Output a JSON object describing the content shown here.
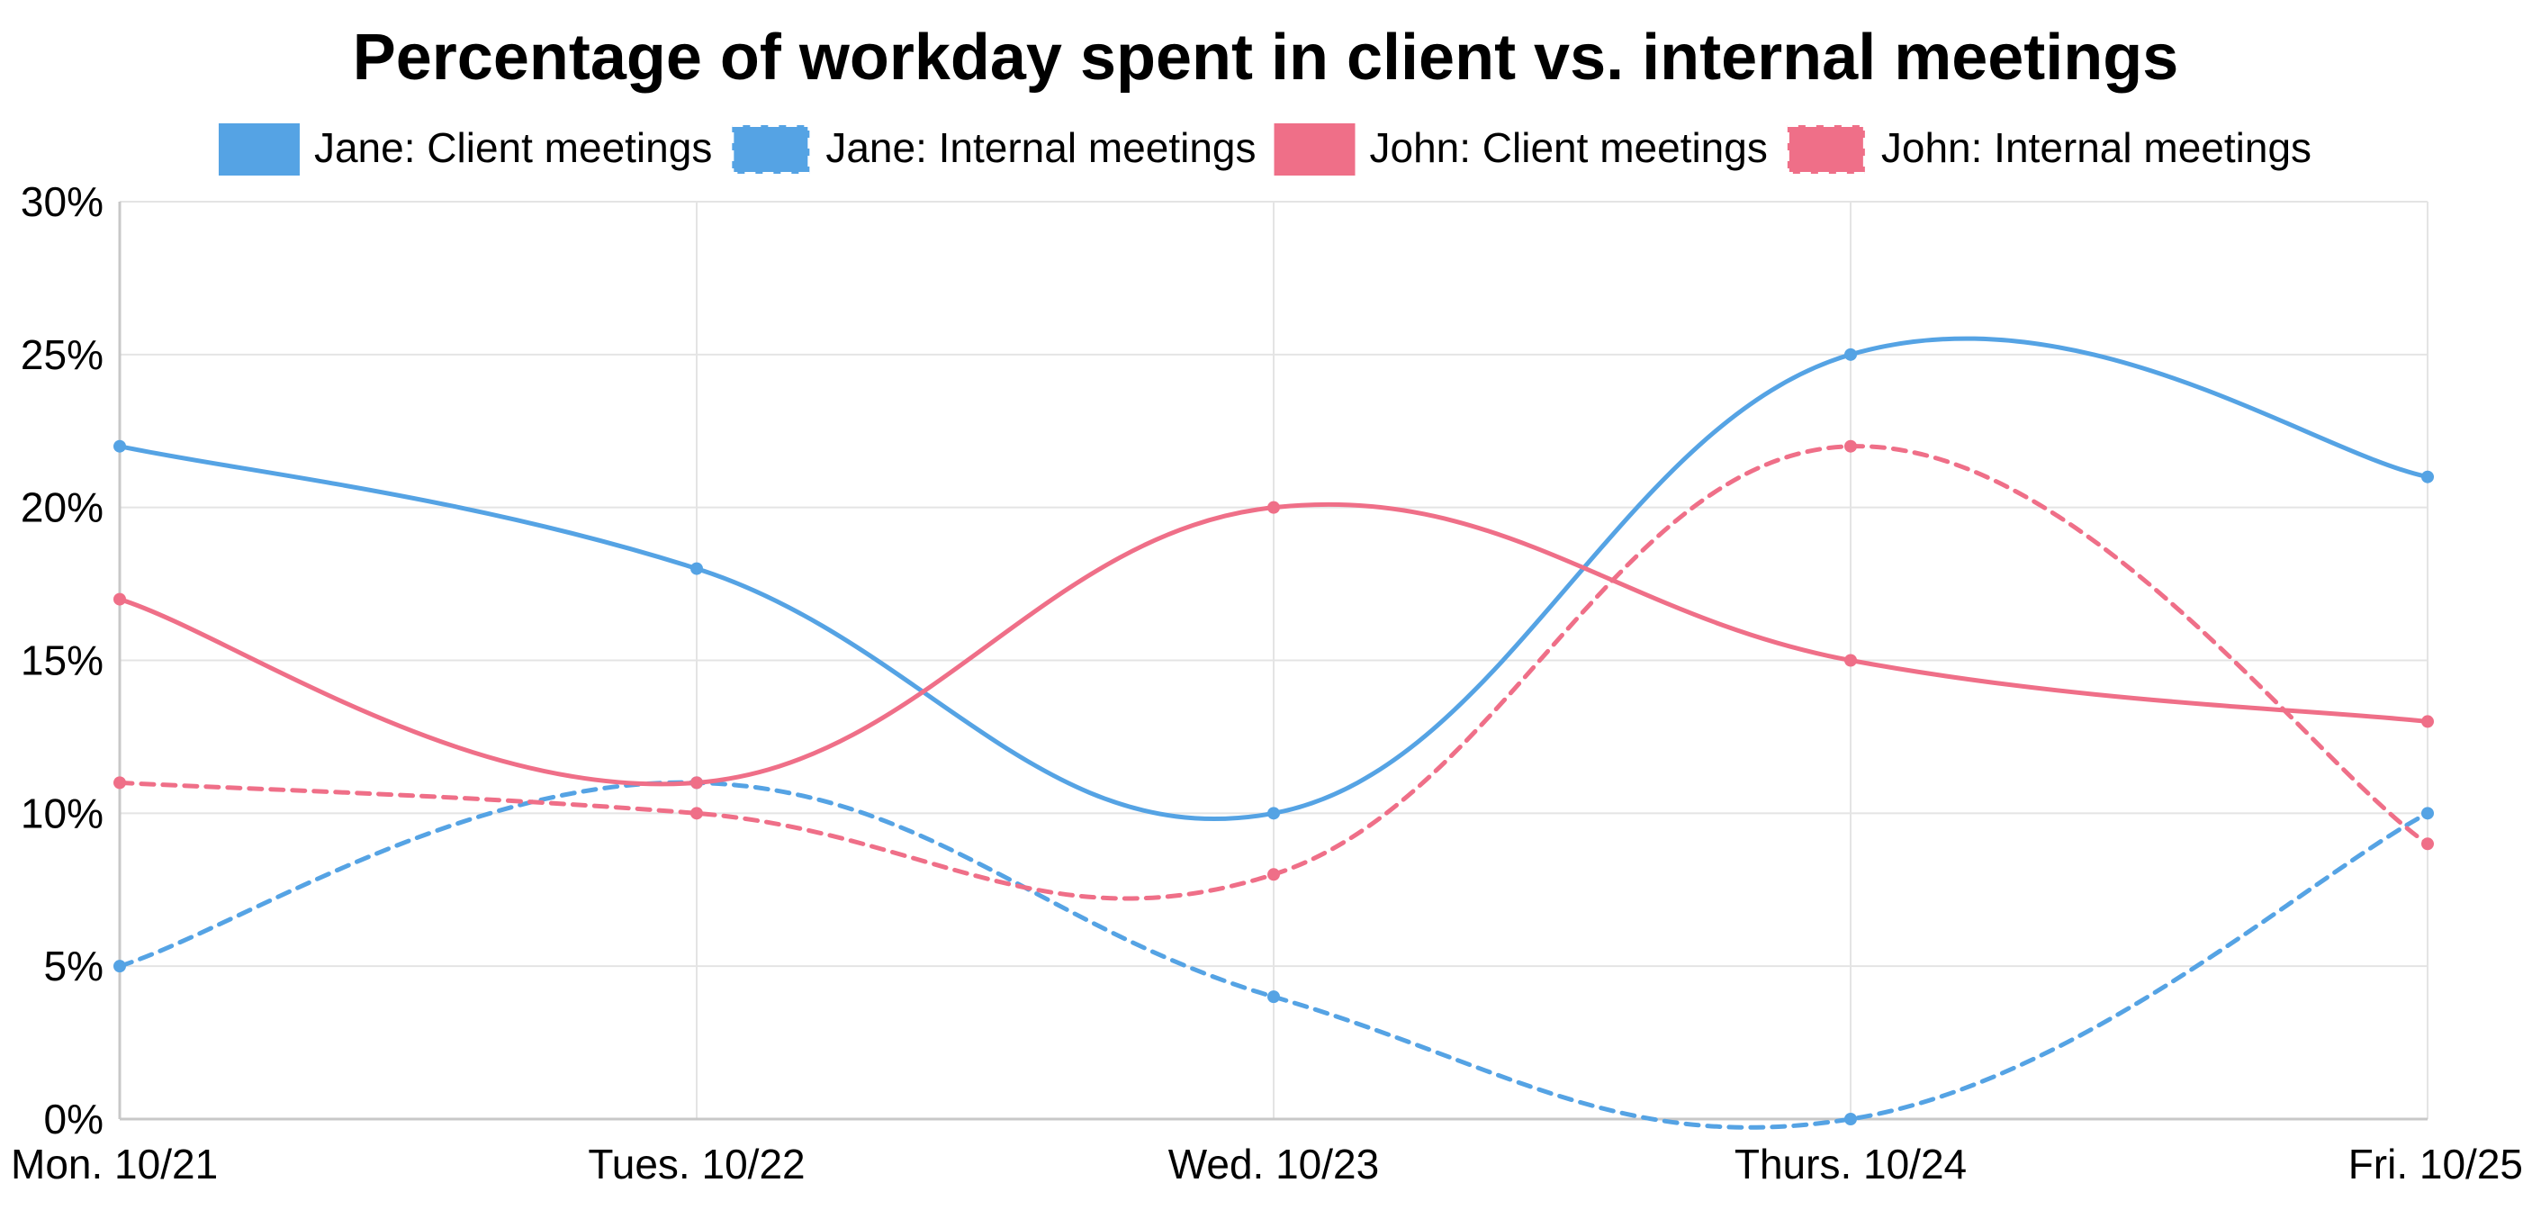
{
  "chart_data": {
    "type": "line",
    "title": "Percentage of workday spent in client vs. internal meetings",
    "xlabel": "",
    "ylabel": "",
    "categories": [
      "Mon. 10/21",
      "Tues. 10/22",
      "Wed. 10/23",
      "Thurs. 10/24",
      "Fri. 10/25"
    ],
    "y_ticks": [
      "0%",
      "5%",
      "10%",
      "15%",
      "20%",
      "25%",
      "30%"
    ],
    "y_tick_values": [
      0,
      5,
      10,
      15,
      20,
      25,
      30
    ],
    "ylim": [
      0,
      30
    ],
    "grid": true,
    "legend_position": "top",
    "series": [
      {
        "name": "Jane: Client meetings",
        "values": [
          22,
          18,
          10,
          25,
          21
        ],
        "color": "#55a3e4",
        "dashed": false
      },
      {
        "name": "Jane: Internal meetings",
        "values": [
          5,
          11,
          4,
          0,
          10
        ],
        "color": "#55a3e4",
        "dashed": true
      },
      {
        "name": "John: Client meetings",
        "values": [
          17,
          11,
          20,
          15,
          13
        ],
        "color": "#ef6f88",
        "dashed": false
      },
      {
        "name": "John: Internal meetings",
        "values": [
          11,
          10,
          8,
          22,
          9
        ],
        "color": "#ef6f88",
        "dashed": true
      }
    ]
  }
}
